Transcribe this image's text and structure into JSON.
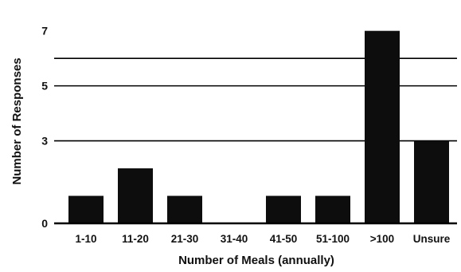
{
  "chart_data": {
    "type": "bar",
    "title": "",
    "xlabel": "Number of Meals (annually)",
    "ylabel": "Number of Responses",
    "categories": [
      "1-10",
      "11-20",
      "21-30",
      "31-40",
      "41-50",
      "51-100",
      ">100",
      "Unsure"
    ],
    "values": [
      1,
      2,
      1,
      0,
      1,
      1,
      7,
      3
    ],
    "ylim": [
      0,
      7.6
    ],
    "yticks": [
      0,
      3,
      5,
      7
    ],
    "ytick_labels": [
      "0",
      "3",
      "5",
      "7"
    ],
    "gridlines": [
      3,
      5,
      6
    ],
    "grid": true,
    "legend": "none",
    "bar_color": "#0d0d0d"
  }
}
